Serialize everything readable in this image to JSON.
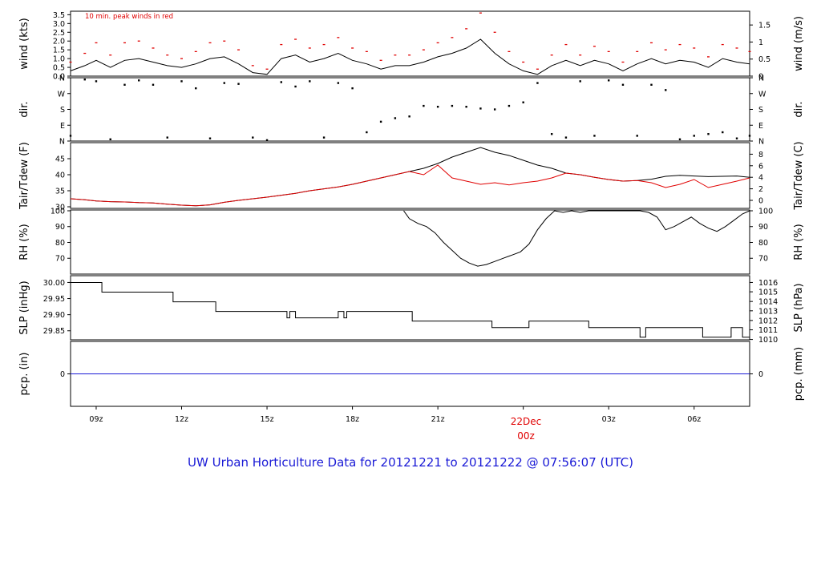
{
  "chart_data": {
    "type": "line",
    "title": "UW Urban Horticulture Data for 20121221  to  20121222 @ 07:56:07  (UTC)",
    "x_ticks": [
      "09z",
      "12z",
      "15z",
      "18z",
      "21z",
      "22Dec",
      "03z",
      "06z"
    ],
    "x_tick_hours": [
      9,
      12,
      15,
      18,
      21,
      24,
      27,
      30
    ],
    "x_highlight_label": "00z",
    "x_range_hours": [
      8.1,
      31.95
    ],
    "panels": [
      {
        "id": "wind",
        "left_label": "wind (kts)",
        "right_label": "wind (m/s)",
        "annotation": "10 min. peak winds in red",
        "ylim": [
          0,
          3.7
        ],
        "left_ticks": [
          "0.0",
          "0.5",
          "1.0",
          "1.5",
          "2.0",
          "2.5",
          "3.0",
          "3.5"
        ],
        "left_tick_values": [
          0,
          0.5,
          1.0,
          1.5,
          2.0,
          2.5,
          3.0,
          3.5
        ],
        "right_ticks": [
          "0",
          "0.5",
          "1",
          "1.5"
        ],
        "right_tick_values": [
          0,
          0.972,
          1.944,
          2.916
        ],
        "series": [
          {
            "name": "wind",
            "color": "#000000",
            "x": [
              8.1,
              8.6,
              9.0,
              9.5,
              10.0,
              10.5,
              11.0,
              11.5,
              12.0,
              12.5,
              13.0,
              13.5,
              14.0,
              14.5,
              15.0,
              15.5,
              16.0,
              16.5,
              17.0,
              17.5,
              18.0,
              18.5,
              19.0,
              19.5,
              20.0,
              20.5,
              21.0,
              21.5,
              22.0,
              22.5,
              23.0,
              23.5,
              24.0,
              24.5,
              25.0,
              25.5,
              26.0,
              26.5,
              27.0,
              27.5,
              28.0,
              28.5,
              29.0,
              29.5,
              30.0,
              30.5,
              31.0,
              31.5,
              31.95
            ],
            "y": [
              0.3,
              0.6,
              0.9,
              0.5,
              0.9,
              1.0,
              0.8,
              0.6,
              0.5,
              0.7,
              1.0,
              1.1,
              0.7,
              0.2,
              0.1,
              1.0,
              1.2,
              0.8,
              1.0,
              1.3,
              0.9,
              0.7,
              0.4,
              0.6,
              0.6,
              0.8,
              1.1,
              1.3,
              1.6,
              2.1,
              1.3,
              0.7,
              0.3,
              0.1,
              0.6,
              0.9,
              0.6,
              0.9,
              0.7,
              0.3,
              0.7,
              1.0,
              0.7,
              0.9,
              0.8,
              0.5,
              1.0,
              0.8,
              0.7
            ]
          },
          {
            "name": "10 min. peak winds",
            "color": "#e00000",
            "x": [
              8.1,
              8.6,
              9.0,
              9.5,
              10.0,
              10.5,
              11.0,
              11.5,
              12.0,
              12.5,
              13.0,
              13.5,
              14.0,
              14.5,
              15.0,
              15.5,
              16.0,
              16.5,
              17.0,
              17.5,
              18.0,
              18.5,
              19.0,
              19.5,
              20.0,
              20.5,
              21.0,
              21.5,
              22.0,
              22.5,
              23.0,
              23.5,
              24.0,
              24.5,
              25.0,
              25.5,
              26.0,
              26.5,
              27.0,
              27.5,
              28.0,
              28.5,
              29.0,
              29.5,
              30.0,
              30.5,
              31.0,
              31.5,
              31.95
            ],
            "y": [
              0.8,
              1.3,
              1.9,
              1.2,
              1.9,
              2.0,
              1.6,
              1.2,
              1.0,
              1.4,
              1.9,
              2.0,
              1.5,
              0.6,
              0.4,
              1.8,
              2.1,
              1.6,
              1.8,
              2.2,
              1.6,
              1.4,
              0.9,
              1.2,
              1.2,
              1.5,
              1.9,
              2.2,
              2.7,
              3.6,
              2.5,
              1.4,
              0.8,
              0.4,
              1.2,
              1.8,
              1.2,
              1.7,
              1.4,
              0.8,
              1.4,
              1.9,
              1.5,
              1.8,
              1.6,
              1.1,
              1.8,
              1.6,
              1.4
            ]
          }
        ]
      },
      {
        "id": "dir",
        "left_label": "dir.",
        "right_label": "dir.",
        "ylim": [
          0,
          360
        ],
        "left_ticks": [
          "N",
          "E",
          "S",
          "W",
          "N"
        ],
        "left_tick_values": [
          0,
          90,
          180,
          270,
          360
        ],
        "right_ticks": [
          "N",
          "E",
          "S",
          "W",
          "N"
        ],
        "right_tick_values": [
          0,
          90,
          180,
          270,
          360
        ],
        "series": [
          {
            "name": "direction",
            "color": "#000000",
            "style": "dots",
            "x": [
              8.1,
              8.6,
              9.0,
              9.5,
              10.0,
              10.5,
              11.0,
              11.5,
              12.0,
              12.5,
              13.0,
              13.5,
              14.0,
              14.5,
              15.0,
              15.5,
              16.0,
              16.5,
              17.0,
              17.5,
              18.0,
              18.5,
              19.0,
              19.5,
              20.0,
              20.5,
              21.0,
              21.5,
              22.0,
              22.5,
              23.0,
              23.5,
              24.0,
              24.5,
              25.0,
              25.5,
              26.0,
              26.5,
              27.0,
              27.5,
              28.0,
              28.5,
              29.0,
              29.5,
              30.0,
              30.5,
              31.0,
              31.5,
              31.95
            ],
            "y": [
              30,
              350,
              340,
              10,
              320,
              345,
              320,
              20,
              340,
              300,
              15,
              330,
              325,
              20,
              5,
              335,
              310,
              340,
              20,
              330,
              300,
              50,
              110,
              130,
              140,
              200,
              195,
              200,
              195,
              185,
              180,
              200,
              220,
              330,
              40,
              20,
              340,
              30,
              345,
              320,
              30,
              320,
              290,
              10,
              30,
              40,
              50,
              15,
              30
            ]
          }
        ]
      },
      {
        "id": "temp",
        "left_label": "Tair/Tdew (F)",
        "right_label": "Tair/Tdew (C)",
        "ylim": [
          29.5,
          50
        ],
        "left_ticks": [
          "30",
          "35",
          "40",
          "45"
        ],
        "left_tick_values": [
          30,
          35,
          40,
          45
        ],
        "right_ticks": [
          "0",
          "2",
          "4",
          "6",
          "8"
        ],
        "right_tick_values": [
          32,
          35.6,
          39.2,
          42.8,
          46.4
        ],
        "series": [
          {
            "name": "Tair",
            "color": "#000000",
            "x": [
              8.1,
              8.6,
              9.0,
              9.5,
              10.0,
              10.5,
              11.0,
              11.5,
              12.0,
              12.5,
              13.0,
              13.5,
              14.0,
              14.5,
              15.0,
              15.5,
              16.0,
              16.5,
              17.0,
              17.5,
              18.0,
              18.5,
              19.0,
              19.5,
              20.0,
              20.5,
              21.0,
              21.5,
              22.0,
              22.5,
              23.0,
              23.5,
              24.0,
              24.5,
              25.0,
              25.5,
              26.0,
              26.5,
              27.0,
              27.5,
              28.0,
              28.5,
              29.0,
              29.5,
              30.0,
              30.5,
              31.0,
              31.5,
              31.95
            ],
            "y": [
              32.5,
              32.2,
              31.8,
              31.6,
              31.5,
              31.3,
              31.2,
              30.8,
              30.5,
              30.3,
              30.6,
              31.4,
              32.0,
              32.5,
              33.0,
              33.6,
              34.2,
              35.0,
              35.6,
              36.2,
              37.0,
              38.0,
              39.0,
              40.0,
              41.0,
              42.0,
              43.5,
              45.5,
              47.0,
              48.5,
              47.0,
              46.0,
              44.5,
              43.0,
              42.0,
              40.5,
              40.0,
              39.2,
              38.5,
              38.0,
              38.2,
              38.6,
              39.5,
              39.8,
              39.6,
              39.4,
              39.5,
              39.6,
              39.2
            ]
          },
          {
            "name": "Tdew",
            "color": "#e00000",
            "x": [
              8.1,
              8.6,
              9.0,
              9.5,
              10.0,
              10.5,
              11.0,
              11.5,
              12.0,
              12.5,
              13.0,
              13.5,
              14.0,
              14.5,
              15.0,
              15.5,
              16.0,
              16.5,
              17.0,
              17.5,
              18.0,
              18.5,
              19.0,
              19.5,
              20.0,
              20.5,
              21.0,
              21.5,
              22.0,
              22.5,
              23.0,
              23.5,
              24.0,
              24.5,
              25.0,
              25.5,
              26.0,
              26.5,
              27.0,
              27.5,
              28.0,
              28.5,
              29.0,
              29.5,
              30.0,
              30.5,
              31.0,
              31.5,
              31.95
            ],
            "y": [
              32.5,
              32.2,
              31.8,
              31.6,
              31.5,
              31.3,
              31.2,
              30.8,
              30.5,
              30.3,
              30.6,
              31.4,
              32.0,
              32.5,
              33.0,
              33.6,
              34.2,
              35.0,
              35.6,
              36.2,
              37.0,
              38.0,
              39.0,
              40.0,
              41.0,
              40.0,
              43.0,
              39.0,
              38.0,
              37.0,
              37.5,
              36.8,
              37.5,
              38.0,
              39.0,
              40.5,
              40.0,
              39.2,
              38.5,
              38.0,
              38.2,
              37.5,
              36.0,
              37.0,
              38.5,
              36.0,
              37.0,
              38.0,
              39.0
            ]
          }
        ]
      },
      {
        "id": "rh",
        "left_label": "RH (%)",
        "right_label": "RH (%)",
        "ylim": [
          60,
          100.5
        ],
        "left_ticks": [
          "70",
          "80",
          "90",
          "100"
        ],
        "left_tick_values": [
          70,
          80,
          90,
          100
        ],
        "right_ticks": [
          "70",
          "80",
          "90",
          "100"
        ],
        "right_tick_values": [
          70,
          80,
          90,
          100
        ],
        "series": [
          {
            "name": "RH",
            "color": "#000000",
            "x": [
              19.8,
              20.0,
              20.3,
              20.6,
              20.9,
              21.2,
              21.5,
              21.8,
              22.1,
              22.4,
              22.7,
              23.0,
              23.3,
              23.6,
              23.9,
              24.2,
              24.5,
              24.8,
              25.1,
              25.4,
              25.7,
              26.0,
              26.3,
              26.6,
              26.9,
              27.2,
              27.5,
              27.8,
              28.1,
              28.4,
              28.7,
              29.0,
              29.3,
              29.6,
              29.9,
              30.2,
              30.5,
              30.8,
              31.1,
              31.4,
              31.7,
              31.95
            ],
            "y": [
              100,
              95,
              92,
              90,
              86,
              80,
              75,
              70,
              67,
              65,
              66,
              68,
              70,
              72,
              74,
              79,
              88,
              95,
              100,
              99,
              100,
              99,
              100,
              100,
              100,
              100,
              100,
              100,
              100,
              99,
              96,
              88,
              90,
              93,
              96,
              92,
              89,
              87,
              90,
              94,
              98,
              100
            ]
          }
        ]
      },
      {
        "id": "slp",
        "left_label": "SLP (inHg)",
        "right_label": "SLP (hPa)",
        "ylim": [
          29.822,
          30.021
        ],
        "left_ticks": [
          "29.85",
          "29.90",
          "29.95",
          "30.00"
        ],
        "left_tick_values": [
          29.85,
          29.9,
          29.95,
          30.0
        ],
        "right_ticks": [
          "1010",
          "1011",
          "1012",
          "1013",
          "1014",
          "1015",
          "1016"
        ],
        "right_tick_values": [
          29.823,
          29.853,
          29.882,
          29.912,
          29.941,
          29.971,
          30.0
        ],
        "series": [
          {
            "name": "SLP",
            "color": "#000000",
            "style": "step",
            "x": [
              8.1,
              9.2,
              11.7,
              13.2,
              15.7,
              15.8,
              16.0,
              16.1,
              17.5,
              17.7,
              17.8,
              20.1,
              22.0,
              22.9,
              24.2,
              26.3,
              28.1,
              28.3,
              30.3,
              31.3,
              31.7,
              31.95
            ],
            "y": [
              30.0,
              29.97,
              29.94,
              29.91,
              29.89,
              29.91,
              29.89,
              29.89,
              29.91,
              29.89,
              29.91,
              29.88,
              29.88,
              29.86,
              29.88,
              29.86,
              29.83,
              29.86,
              29.83,
              29.86,
              29.83,
              29.83
            ]
          }
        ]
      },
      {
        "id": "pcp",
        "left_label": "pcp. (in)",
        "right_label": "pcp. (mm)",
        "ylim": [
          -1,
          1
        ],
        "left_ticks": [
          "0"
        ],
        "left_tick_values": [
          0
        ],
        "right_ticks": [
          "0"
        ],
        "right_tick_values": [
          0
        ],
        "series": [
          {
            "name": "pcp",
            "color": "#1a1ad6",
            "x": [
              8.1,
              31.95
            ],
            "y": [
              0,
              0
            ]
          }
        ]
      }
    ],
    "grid": false,
    "legend": "none",
    "colors": {
      "title": "#1a1ad6",
      "highlight": "#e00000",
      "line": "#000000",
      "dew": "#e00000",
      "pcp": "#1a1ad6"
    }
  }
}
